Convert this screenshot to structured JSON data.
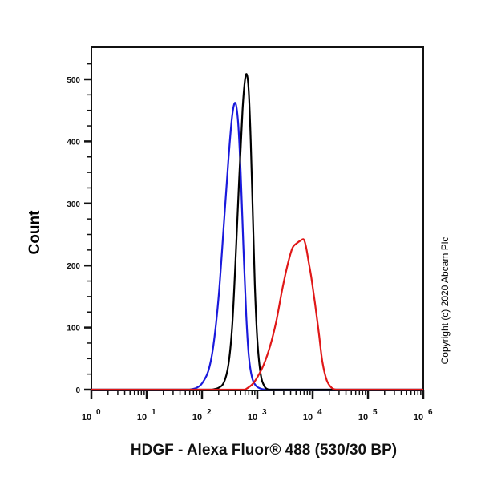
{
  "chart_data": {
    "type": "line",
    "subtype": "flow-cytometry-histogram",
    "title": "",
    "xlabel": "HDGF - Alexa Fluor® 488 (530/30 BP)",
    "ylabel": "Count",
    "xscale": "log",
    "xlim": [
      1,
      1000000
    ],
    "ylim": [
      0,
      550
    ],
    "x_tick_labels": [
      "10^0",
      "10^1",
      "10^2",
      "10^3",
      "10^4",
      "10^5",
      "10^6"
    ],
    "y_tick_labels": [
      "0",
      "100",
      "200",
      "300",
      "400",
      "500"
    ],
    "y_ticks": [
      0,
      100,
      200,
      300,
      400,
      500
    ],
    "grid": false,
    "legend": null,
    "series": [
      {
        "name": "blue",
        "color": "#1a1adc",
        "peak_x": 420,
        "peak_count": 462,
        "points": [
          [
            60,
            0
          ],
          [
            80,
            3
          ],
          [
            100,
            10
          ],
          [
            130,
            30
          ],
          [
            160,
            70
          ],
          [
            200,
            150
          ],
          [
            250,
            270
          ],
          [
            300,
            370
          ],
          [
            350,
            440
          ],
          [
            400,
            462
          ],
          [
            450,
            430
          ],
          [
            500,
            350
          ],
          [
            560,
            230
          ],
          [
            630,
            120
          ],
          [
            700,
            55
          ],
          [
            800,
            20
          ],
          [
            950,
            6
          ],
          [
            1200,
            1
          ],
          [
            1500,
            0
          ]
        ]
      },
      {
        "name": "black",
        "color": "#000000",
        "peak_x": 650,
        "peak_count": 507,
        "points": [
          [
            150,
            0
          ],
          [
            200,
            3
          ],
          [
            250,
            12
          ],
          [
            300,
            40
          ],
          [
            350,
            100
          ],
          [
            400,
            200
          ],
          [
            470,
            340
          ],
          [
            540,
            450
          ],
          [
            600,
            500
          ],
          [
            650,
            507
          ],
          [
            700,
            480
          ],
          [
            760,
            400
          ],
          [
            830,
            280
          ],
          [
            900,
            170
          ],
          [
            1000,
            80
          ],
          [
            1150,
            25
          ],
          [
            1350,
            5
          ],
          [
            1600,
            0
          ]
        ]
      },
      {
        "name": "red",
        "color": "#e01818",
        "peak_x": 6900,
        "peak_count": 242,
        "points": [
          [
            600,
            0
          ],
          [
            800,
            8
          ],
          [
            1000,
            20
          ],
          [
            1300,
            40
          ],
          [
            1700,
            70
          ],
          [
            2200,
            110
          ],
          [
            2800,
            160
          ],
          [
            3500,
            200
          ],
          [
            4300,
            228
          ],
          [
            5200,
            236
          ],
          [
            6000,
            240
          ],
          [
            6900,
            242
          ],
          [
            7600,
            230
          ],
          [
            8500,
            205
          ],
          [
            9500,
            180
          ],
          [
            11000,
            140
          ],
          [
            13000,
            90
          ],
          [
            15000,
            45
          ],
          [
            18000,
            15
          ],
          [
            22000,
            3
          ],
          [
            26000,
            0
          ]
        ]
      }
    ],
    "annotations": [
      "Copyright (c) 2020 Abcam Plc"
    ]
  },
  "labels": {
    "ylabel": "Count",
    "xlabel": "HDGF - Alexa Fluor® 488 (530/30 BP)",
    "copyright": "Copyright (c) 2020 Abcam Plc"
  }
}
